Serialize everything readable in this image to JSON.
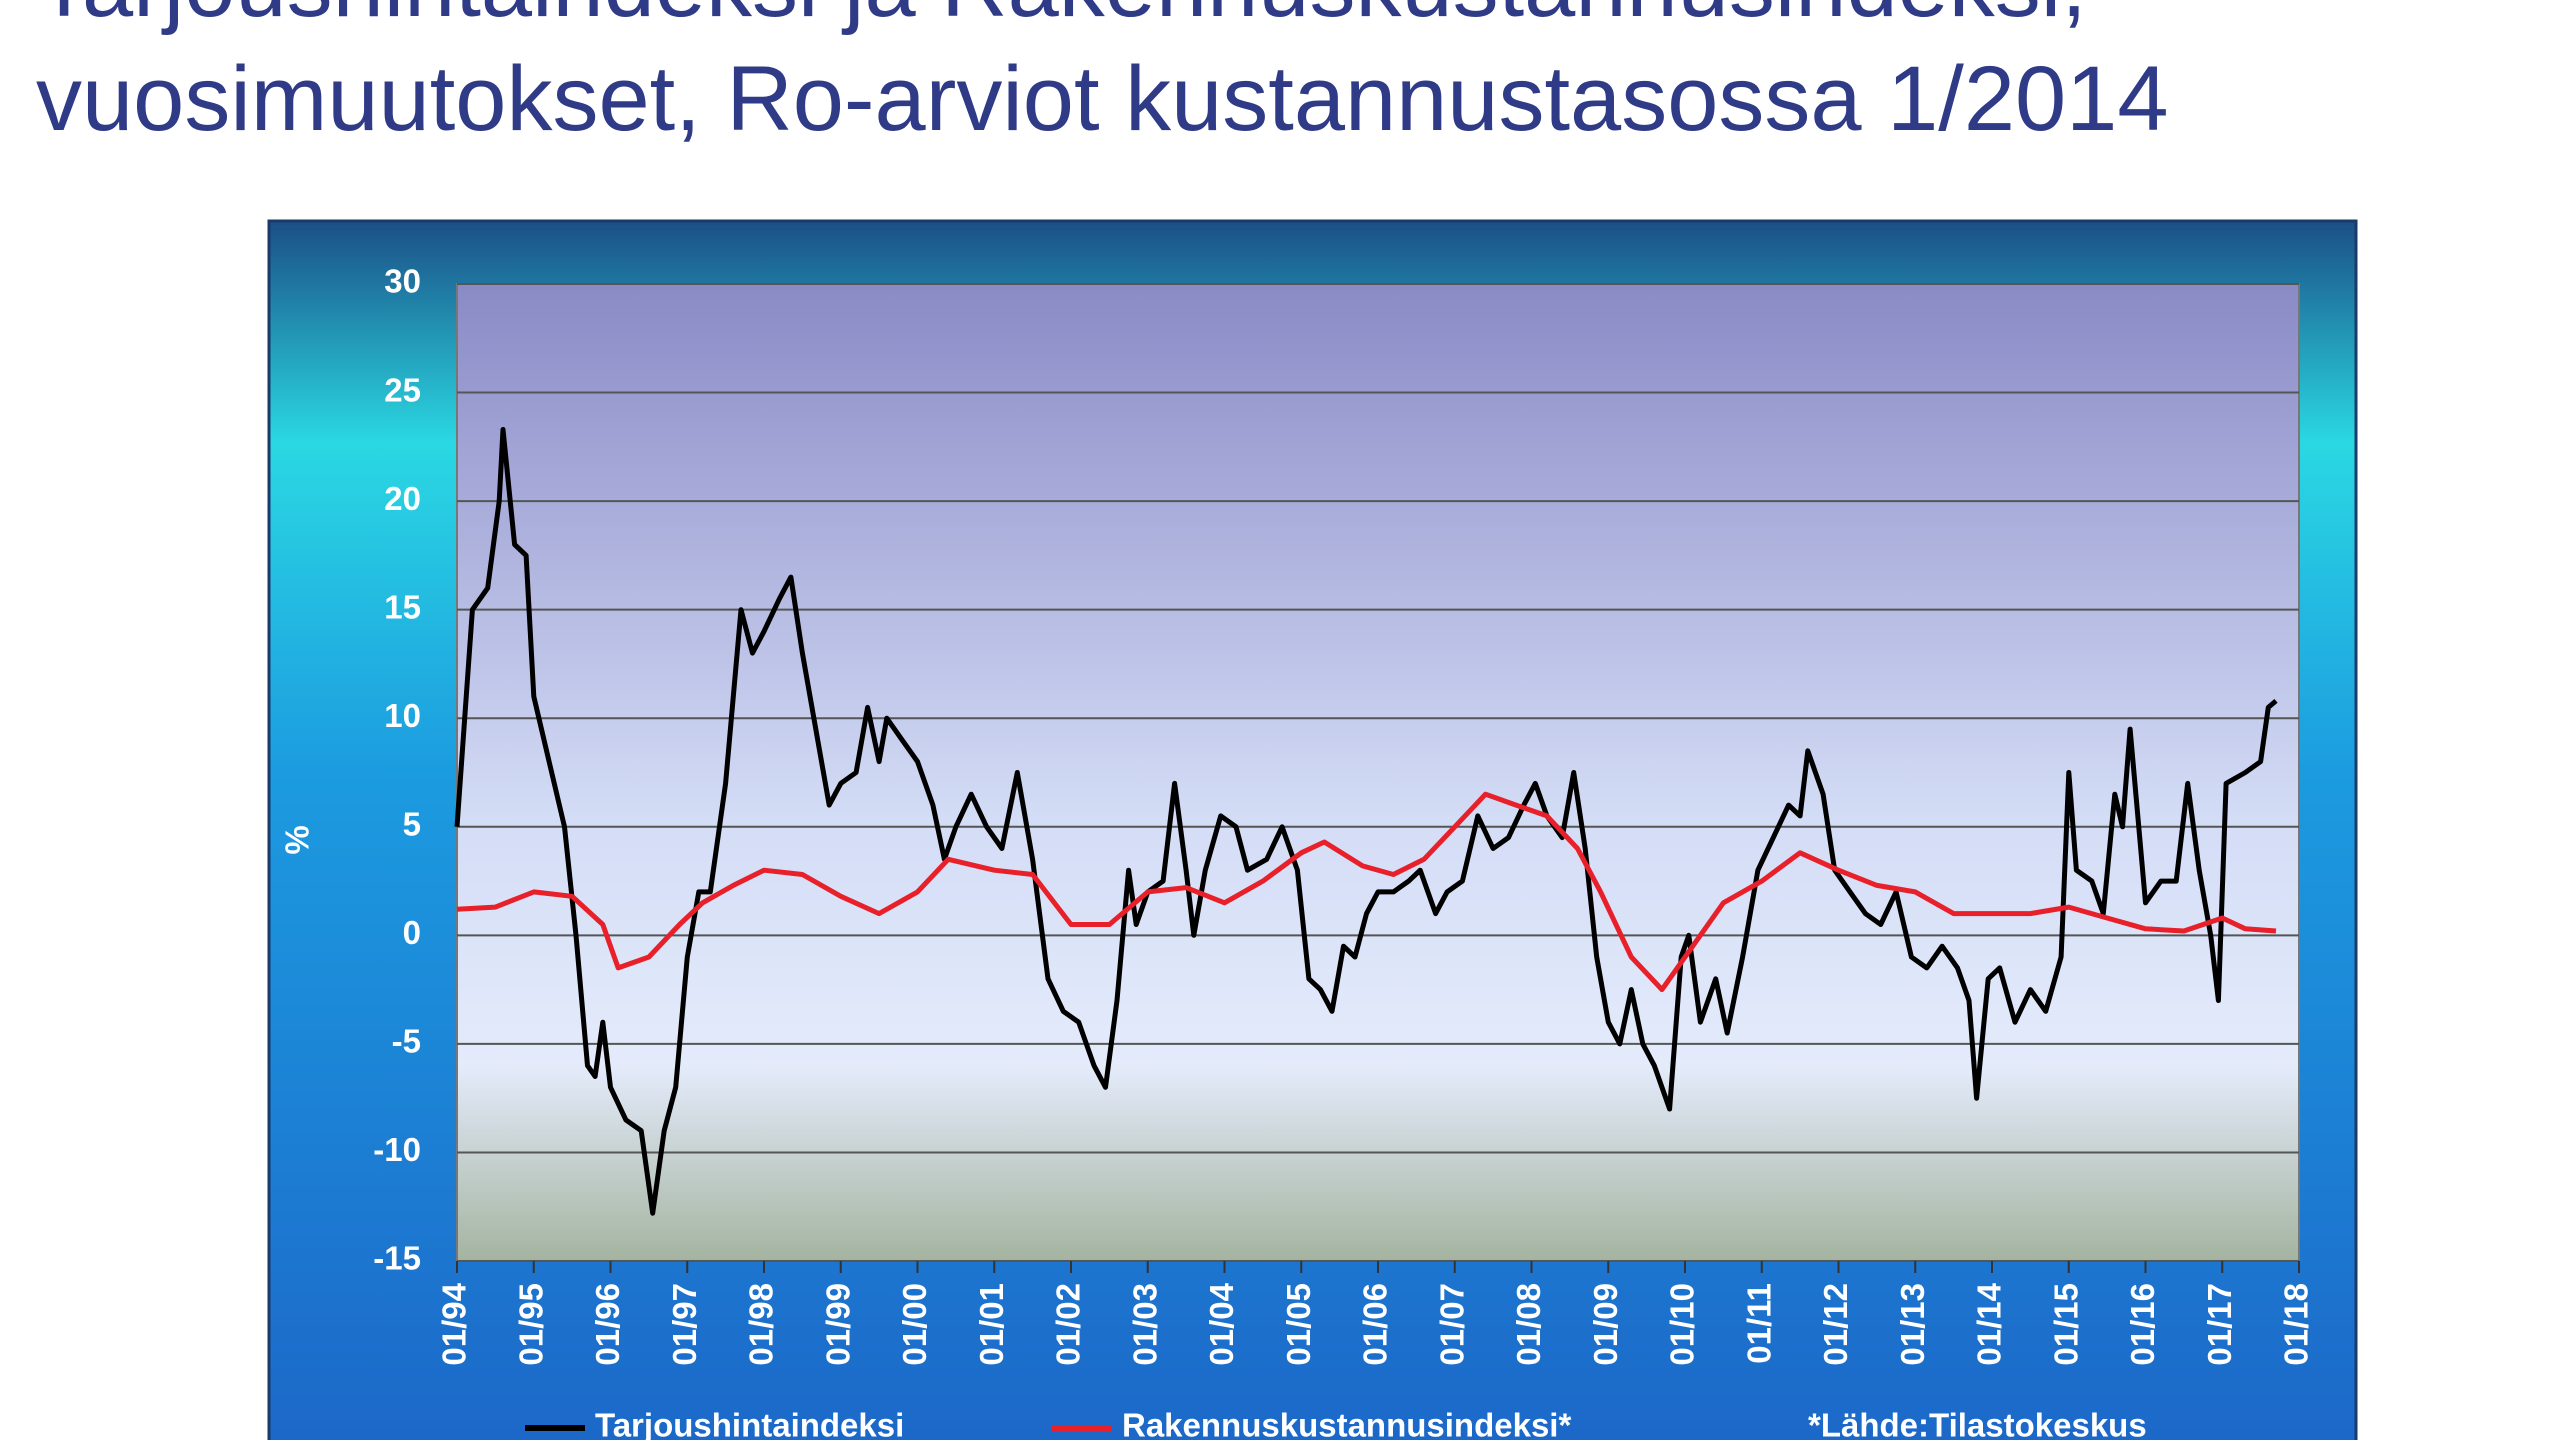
{
  "title_lines": [
    "Tarjoushintaindeksi ja Rakennuskustannusindeksi,",
    "vuosimuutokset, Ro-arviot kustannustasossa 1/2014"
  ],
  "chart_data": {
    "type": "line",
    "ylabel": "%",
    "note": "*Lähde:Tilastokeskus",
    "grid": true,
    "ylim": [
      -15,
      30
    ],
    "yticks": [
      -15,
      -10,
      -5,
      0,
      5,
      10,
      15,
      20,
      25,
      30
    ],
    "xlim": [
      1994,
      2018
    ],
    "xticks": [
      {
        "value": 1994,
        "label": "01/94"
      },
      {
        "value": 1995,
        "label": "01/95"
      },
      {
        "value": 1996,
        "label": "01/96"
      },
      {
        "value": 1997,
        "label": "01/97"
      },
      {
        "value": 1998,
        "label": "01/98"
      },
      {
        "value": 1999,
        "label": "01/99"
      },
      {
        "value": 2000,
        "label": "01/00"
      },
      {
        "value": 2001,
        "label": "01/01"
      },
      {
        "value": 2002,
        "label": "01/02"
      },
      {
        "value": 2003,
        "label": "01/03"
      },
      {
        "value": 2004,
        "label": "01/04"
      },
      {
        "value": 2005,
        "label": "01/05"
      },
      {
        "value": 2006,
        "label": "01/06"
      },
      {
        "value": 2007,
        "label": "01/07"
      },
      {
        "value": 2008,
        "label": "01/08"
      },
      {
        "value": 2009,
        "label": "01/09"
      },
      {
        "value": 2010,
        "label": "01/10"
      },
      {
        "value": 2011,
        "label": "01/11"
      },
      {
        "value": 2012,
        "label": "01/12"
      },
      {
        "value": 2013,
        "label": "01/13"
      },
      {
        "value": 2014,
        "label": "01/14"
      },
      {
        "value": 2015,
        "label": "01/15"
      },
      {
        "value": 2016,
        "label": "01/16"
      },
      {
        "value": 2017,
        "label": "01/17"
      },
      {
        "value": 2018,
        "label": "01/18"
      }
    ],
    "series": [
      {
        "name": "Tarjoushintaindeksi",
        "color": "#000000",
        "x": [
          1994.0,
          1994.1,
          1994.2,
          1994.4,
          1994.55,
          1994.6,
          1994.75,
          1994.9,
          1995.0,
          1995.2,
          1995.4,
          1995.55,
          1995.7,
          1995.8,
          1995.9,
          1996.0,
          1996.2,
          1996.4,
          1996.55,
          1996.7,
          1996.85,
          1997.0,
          1997.15,
          1997.3,
          1997.5,
          1997.7,
          1997.85,
          1998.0,
          1998.2,
          1998.35,
          1998.5,
          1998.7,
          1998.85,
          1999.0,
          1999.2,
          1999.35,
          1999.5,
          1999.6,
          1999.8,
          2000.0,
          2000.2,
          2000.35,
          2000.5,
          2000.7,
          2000.9,
          2001.1,
          2001.3,
          2001.5,
          2001.7,
          2001.9,
          2002.1,
          2002.3,
          2002.45,
          2002.6,
          2002.75,
          2002.85,
          2003.0,
          2003.2,
          2003.35,
          2003.5,
          2003.6,
          2003.75,
          2003.95,
          2004.15,
          2004.3,
          2004.55,
          2004.75,
          2004.95,
          2005.1,
          2005.25,
          2005.4,
          2005.55,
          2005.7,
          2005.85,
          2006.0,
          2006.2,
          2006.4,
          2006.55,
          2006.75,
          2006.9,
          2007.1,
          2007.3,
          2007.5,
          2007.7,
          2007.9,
          2008.05,
          2008.2,
          2008.4,
          2008.55,
          2008.7,
          2008.85,
          2009.0,
          2009.15,
          2009.3,
          2009.45,
          2009.6,
          2009.8,
          2009.95,
          2010.05,
          2010.2,
          2010.4,
          2010.55,
          2010.75,
          2010.95,
          2011.15,
          2011.35,
          2011.5,
          2011.6,
          2011.8,
          2011.95,
          2012.15,
          2012.35,
          2012.55,
          2012.75,
          2012.95,
          2013.15,
          2013.35,
          2013.55,
          2013.7,
          2013.8,
          2013.95,
          2014.1,
          2014.3,
          2014.5,
          2014.7,
          2014.9,
          2015.0,
          2015.1,
          2015.3,
          2015.45,
          2015.6,
          2015.7,
          2015.8,
          2016.0,
          2016.2,
          2016.4,
          2016.55,
          2016.7,
          2016.85,
          2016.95,
          2017.05,
          2017.3,
          2017.5,
          2017.6,
          2017.7
        ],
        "values": [
          5,
          10,
          15,
          16,
          20,
          23.3,
          18,
          17.5,
          11,
          8,
          5,
          0,
          -6,
          -6.5,
          -4,
          -7,
          -8.5,
          -9,
          -12.8,
          -9,
          -7,
          -1,
          2,
          2,
          7,
          15,
          13,
          14,
          15.5,
          16.5,
          13,
          9,
          6,
          7,
          7.5,
          10.5,
          8,
          10,
          9,
          8,
          6,
          3.5,
          5,
          6.5,
          5,
          4,
          7.5,
          3.5,
          -2,
          -3.5,
          -4,
          -6,
          -7,
          -3,
          3,
          0.5,
          2,
          2.5,
          7,
          3,
          0,
          3,
          5.5,
          5,
          3,
          3.5,
          5,
          3,
          -2,
          -2.5,
          -3.5,
          -0.5,
          -1,
          1,
          2,
          2,
          2.5,
          3,
          1,
          2,
          2.5,
          5.5,
          4,
          4.5,
          6,
          7,
          5.5,
          4.5,
          7.5,
          4,
          -1,
          -4,
          -5,
          -2.5,
          -5,
          -6,
          -8,
          -1,
          0,
          -4,
          -2,
          -4.5,
          -1,
          3,
          4.5,
          6,
          5.5,
          8.5,
          6.5,
          3,
          2,
          1,
          0.5,
          2,
          -1,
          -1.5,
          -0.5,
          -1.5,
          -3,
          -7.5,
          -2,
          -1.5,
          -4,
          -2.5,
          -3.5,
          -1,
          7.5,
          3,
          2.5,
          1,
          6.5,
          5,
          9.5,
          1.5,
          2.5,
          2.5,
          7,
          3,
          0,
          -3,
          7,
          7.5,
          8,
          10.5,
          10.8
        ]
      },
      {
        "name": "Rakennuskustannusindeksi*",
        "color": "#e8202a",
        "x": [
          1994.0,
          1994.5,
          1995.0,
          1995.5,
          1995.9,
          1996.1,
          1996.5,
          1996.9,
          1997.2,
          1997.6,
          1998.0,
          1998.5,
          1999.0,
          1999.5,
          2000.0,
          2000.4,
          2001.0,
          2001.5,
          2002.0,
          2002.5,
          2003.0,
          2003.5,
          2004.0,
          2004.5,
          2005.0,
          2005.3,
          2005.8,
          2006.2,
          2006.6,
          2007.0,
          2007.4,
          2007.8,
          2008.2,
          2008.6,
          2008.9,
          2009.3,
          2009.7,
          2010.1,
          2010.5,
          2011.0,
          2011.5,
          2012.0,
          2012.5,
          2013.0,
          2013.5,
          2014.0,
          2014.5,
          2015.0,
          2015.5,
          2016.0,
          2016.5,
          2017.0,
          2017.3,
          2017.7
        ],
        "values": [
          1.2,
          1.3,
          2,
          1.8,
          0.5,
          -1.5,
          -1,
          0.5,
          1.5,
          2.3,
          3,
          2.8,
          1.8,
          1,
          2,
          3.5,
          3,
          2.8,
          0.5,
          0.5,
          2,
          2.2,
          1.5,
          2.5,
          3.8,
          4.3,
          3.2,
          2.8,
          3.5,
          5,
          6.5,
          6,
          5.5,
          4,
          2,
          -1,
          -2.5,
          -0.5,
          1.5,
          2.5,
          3.8,
          3,
          2.3,
          2,
          1,
          1,
          1,
          1.3,
          0.8,
          0.3,
          0.2,
          0.8,
          0.3,
          0.2
        ]
      }
    ]
  }
}
